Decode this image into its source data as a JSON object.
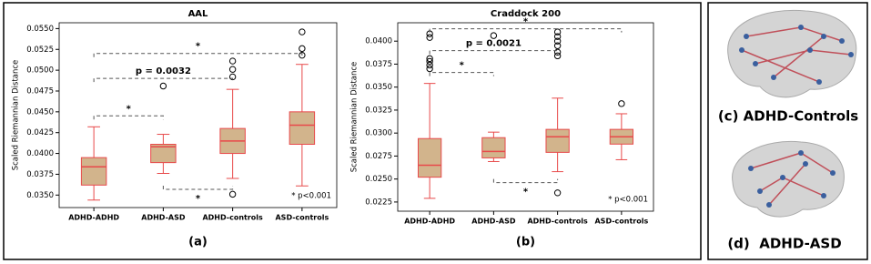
{
  "chart_data": [
    {
      "type": "box",
      "title": "AAL",
      "ylabel": "Scaled Riemannian Distance",
      "panel": "(a)",
      "note": "* p<0.001",
      "categories": [
        "ADHD-ADHD",
        "ADHD-ASD",
        "ADHD-controls",
        "ASD-controls"
      ],
      "fill": "#d2b48c",
      "color": "#e8494a",
      "boxes": [
        {
          "whislo": 0.0344,
          "q1": 0.0362,
          "med": 0.0384,
          "q3": 0.0395,
          "whishi": 0.0432,
          "fliers": []
        },
        {
          "whislo": 0.0376,
          "q1": 0.0389,
          "med": 0.0408,
          "q3": 0.0411,
          "whishi": 0.0423,
          "fliers": [
            0.0481
          ]
        },
        {
          "whislo": 0.037,
          "q1": 0.04,
          "med": 0.0415,
          "q3": 0.043,
          "whishi": 0.0477,
          "fliers": [
            0.0511,
            0.0501,
            0.0492,
            0.0351
          ]
        },
        {
          "whislo": 0.0361,
          "q1": 0.0411,
          "med": 0.0434,
          "q3": 0.045,
          "whishi": 0.0507,
          "fliers": [
            0.0546,
            0.0526,
            0.0518
          ]
        }
      ],
      "ylim": [
        0.0335,
        0.0557
      ],
      "yticks": [
        {
          "value": 0.035,
          "label": "0.0350"
        },
        {
          "value": 0.0375,
          "label": "0.0375"
        },
        {
          "value": 0.04,
          "label": "0.0400"
        },
        {
          "value": 0.0425,
          "label": "0.0425"
        },
        {
          "value": 0.045,
          "label": "0.0450"
        },
        {
          "value": 0.0475,
          "label": "0.0475"
        },
        {
          "value": 0.05,
          "label": "0.0500"
        },
        {
          "value": 0.0525,
          "label": "0.0525"
        },
        {
          "value": 0.055,
          "label": "0.0550"
        }
      ],
      "annotations": [
        {
          "text": "*",
          "pair": [
            "ADHD-ADHD",
            "ASD-controls"
          ],
          "side": "above"
        },
        {
          "text": "p = 0.0032",
          "pair": [
            "ADHD-ADHD",
            "ADHD-controls"
          ],
          "side": "above"
        },
        {
          "text": "*",
          "pair": [
            "ADHD-ADHD",
            "ADHD-ASD"
          ],
          "side": "above"
        },
        {
          "text": "*",
          "pair": [
            "ADHD-ASD",
            "ADHD-controls"
          ],
          "side": "below"
        }
      ]
    },
    {
      "type": "box",
      "title": "Craddock 200",
      "ylabel": "Scaled Riemannian Distance",
      "panel": "(b)",
      "note": "* p<0.001",
      "categories": [
        "ADHD-ADHD",
        "ADHD-ASD",
        "ADHD-controls",
        "ASD-controls"
      ],
      "fill": "#d2b48c",
      "color": "#e8494a",
      "boxes": [
        {
          "whislo": 0.0229,
          "q1": 0.0252,
          "med": 0.0265,
          "q3": 0.0294,
          "whishi": 0.0354,
          "fliers": [
            0.0408,
            0.0404,
            0.0381,
            0.0378,
            0.0374,
            0.037
          ]
        },
        {
          "whislo": 0.0269,
          "q1": 0.0273,
          "med": 0.028,
          "q3": 0.0295,
          "whishi": 0.0301,
          "fliers": [
            0.0406
          ]
        },
        {
          "whislo": 0.0258,
          "q1": 0.0279,
          "med": 0.0296,
          "q3": 0.0304,
          "whishi": 0.0338,
          "fliers": [
            0.041,
            0.0405,
            0.04,
            0.0395,
            0.0388,
            0.0384,
            0.0235
          ]
        },
        {
          "whislo": 0.0271,
          "q1": 0.0288,
          "med": 0.0296,
          "q3": 0.0304,
          "whishi": 0.0321,
          "fliers": [
            0.0332
          ]
        }
      ],
      "ylim": [
        0.0215,
        0.042
      ],
      "yticks": [
        {
          "value": 0.0225,
          "label": "0.0225"
        },
        {
          "value": 0.025,
          "label": "0.0250"
        },
        {
          "value": 0.0275,
          "label": "0.0275"
        },
        {
          "value": 0.03,
          "label": "0.0300"
        },
        {
          "value": 0.0325,
          "label": "0.0325"
        },
        {
          "value": 0.035,
          "label": "0.0350"
        },
        {
          "value": 0.0375,
          "label": "0.0375"
        },
        {
          "value": 0.04,
          "label": "0.0400"
        }
      ],
      "annotations": [
        {
          "text": "*",
          "pair": [
            "ADHD-ADHD",
            "ASD-controls"
          ],
          "side": "above"
        },
        {
          "text": "p = 0.0021",
          "pair": [
            "ADHD-ADHD",
            "ADHD-controls"
          ],
          "side": "above"
        },
        {
          "text": "*",
          "pair": [
            "ADHD-ADHD",
            "ADHD-ASD"
          ],
          "side": "above"
        },
        {
          "text": "*",
          "pair": [
            "ADHD-ASD",
            "ADHD-controls"
          ],
          "side": "below"
        }
      ]
    }
  ],
  "brains": [
    "(c) ADHD-Controls",
    "(d)  ADHD-ASD"
  ]
}
